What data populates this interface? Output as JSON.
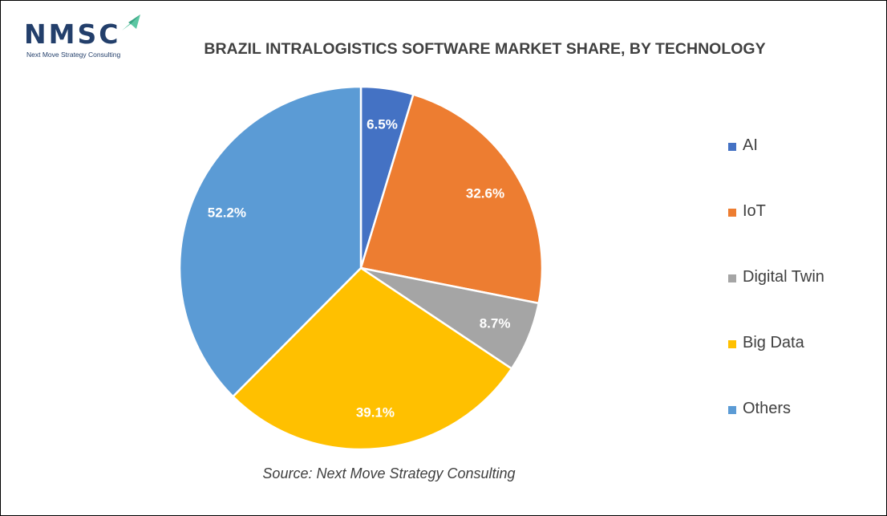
{
  "logo": {
    "letters": "NMSC",
    "tagline": "Next Move Strategy Consulting"
  },
  "source": "Source: Next Move Strategy Consulting",
  "chart_data": {
    "type": "pie",
    "title": "BRAZIL INTRALOGISTICS SOFTWARE MARKET SHARE, BY TECHNOLOGY",
    "legend_position": "right",
    "categories": [
      "AI",
      "IoT",
      "Digital Twin",
      "Big Data",
      "Others"
    ],
    "values": [
      6.5,
      32.6,
      8.7,
      39.1,
      52.2
    ],
    "data_labels": [
      "6.5%",
      "32.6%",
      "8.7%",
      "39.1%",
      "52.2%"
    ],
    "colors": [
      "#4472c4",
      "#ed7d31",
      "#a5a5a5",
      "#ffc000",
      "#5b9bd5"
    ]
  }
}
